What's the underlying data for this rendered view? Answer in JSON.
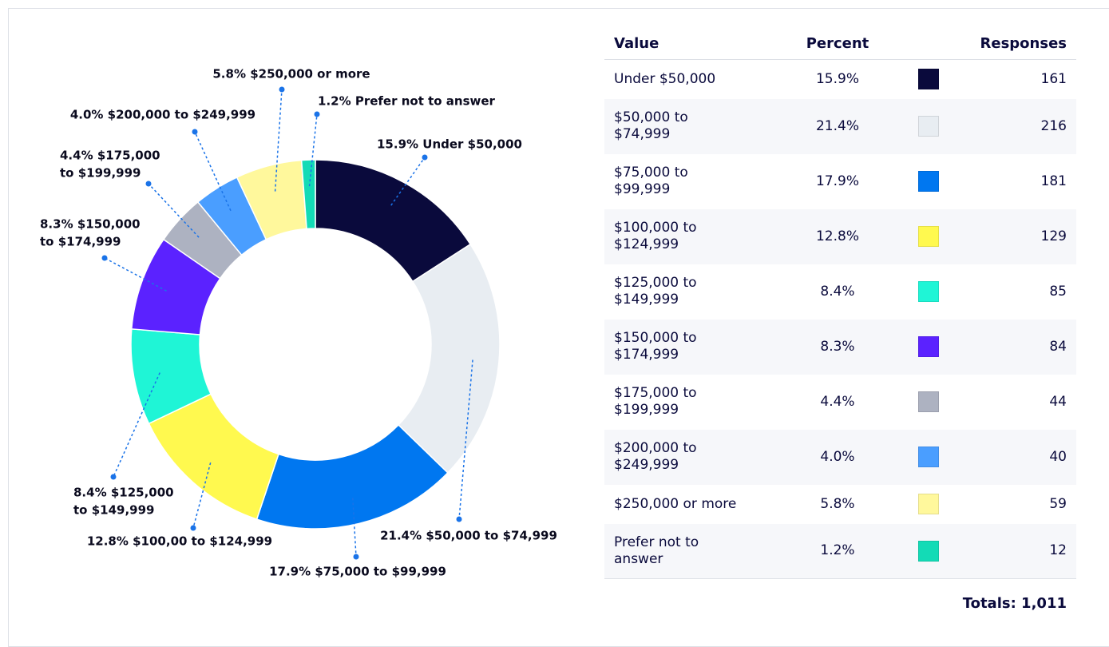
{
  "chart_data": {
    "type": "donut",
    "categories": [
      "Under $50,000",
      "$50,000 to $74,999",
      "$75,000 to $99,999",
      "$100,000 to $124,999",
      "$125,000 to $149,999",
      "$150,000 to $174,999",
      "$175,000 to $199,999",
      "$200,000 to $249,999",
      "$250,000 or more",
      "Prefer not to answer"
    ],
    "values": [
      15.9,
      21.4,
      17.9,
      12.8,
      8.4,
      8.3,
      4.4,
      4.0,
      5.8,
      1.2
    ],
    "colors": [
      "#0a0a3c",
      "#e8edf2",
      "#0077f0",
      "#fff94f",
      "#1ff5d6",
      "#5b22ff",
      "#adb2c1",
      "#4a9eff",
      "#fff89c",
      "#13dbb6"
    ],
    "callouts": [
      [
        "15.9% Under $50,000"
      ],
      [
        "21.4% $50,000 to $74,999"
      ],
      [
        "17.9% $75,000 to $99,999"
      ],
      [
        "12.8% $100,00 to $124,999"
      ],
      [
        "8.4% $125,000",
        "to $149,999"
      ],
      [
        "8.3% $150,000",
        "to $174,999"
      ],
      [
        "4.4% $175,000",
        "to $199,999"
      ],
      [
        "4.0% $200,000 to $249,999"
      ],
      [
        "5.8% $250,000 or more"
      ],
      [
        "1.2% Prefer not to answer"
      ]
    ]
  },
  "table": {
    "headers": [
      "Value",
      "Percent",
      "Responses"
    ],
    "rows": [
      [
        [
          "Under $50,000"
        ],
        "15.9%",
        161
      ],
      [
        [
          "$50,000 to",
          "$74,999"
        ],
        "21.4%",
        216
      ],
      [
        [
          "$75,000 to",
          "$99,999"
        ],
        "17.9%",
        181
      ],
      [
        [
          "$100,000 to",
          "$124,999"
        ],
        "12.8%",
        129
      ],
      [
        [
          "$125,000 to",
          "$149,999"
        ],
        "8.4%",
        85
      ],
      [
        [
          "$150,000 to",
          "$174,999"
        ],
        "8.3%",
        84
      ],
      [
        [
          "$175,000 to",
          "$199,999"
        ],
        "4.4%",
        44
      ],
      [
        [
          "$200,000 to",
          "$249,999"
        ],
        "4.0%",
        40
      ],
      [
        [
          "$250,000 or more"
        ],
        "5.8%",
        59
      ],
      [
        [
          "Prefer not to",
          "answer"
        ],
        "1.2%",
        12
      ]
    ],
    "total": "Totals: 1,011"
  }
}
